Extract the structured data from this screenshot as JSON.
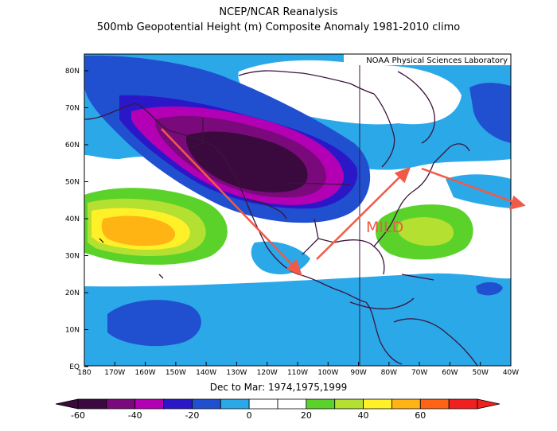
{
  "title": "NCEP/NCAR Reanalysis",
  "subtitle": "500mb Geopotential Height (m) Composite Anomaly 1981-2010 climo",
  "credit": "NOAA Physical Sciences Laboratory",
  "period": "Dec to Mar: 1974,1975,1999",
  "annotation": "MILD",
  "lat_labels": [
    "80N",
    "70N",
    "60N",
    "50N",
    "40N",
    "30N",
    "20N",
    "10N",
    "EQ"
  ],
  "lon_labels": [
    "180",
    "170W",
    "160W",
    "150W",
    "140W",
    "130W",
    "120W",
    "110W",
    "100W",
    "90W",
    "80W",
    "70W",
    "60W",
    "50W",
    "40W"
  ],
  "colorbar": {
    "labels": [
      "-60",
      "-40",
      "-20",
      "0",
      "20",
      "40",
      "60"
    ],
    "colors": [
      "#3a0a3e",
      "#7a0a7c",
      "#b400b4",
      "#2a18c8",
      "#2050d0",
      "#2ba8e8",
      "#ffffff",
      "#ffffff",
      "#5ad22a",
      "#b4e032",
      "#fff028",
      "#ffb414",
      "#ff6414",
      "#f02020"
    ]
  },
  "colors": {
    "arrow": "#f05a46",
    "annotation": "#f05a46",
    "coast": "#3c143c"
  }
}
